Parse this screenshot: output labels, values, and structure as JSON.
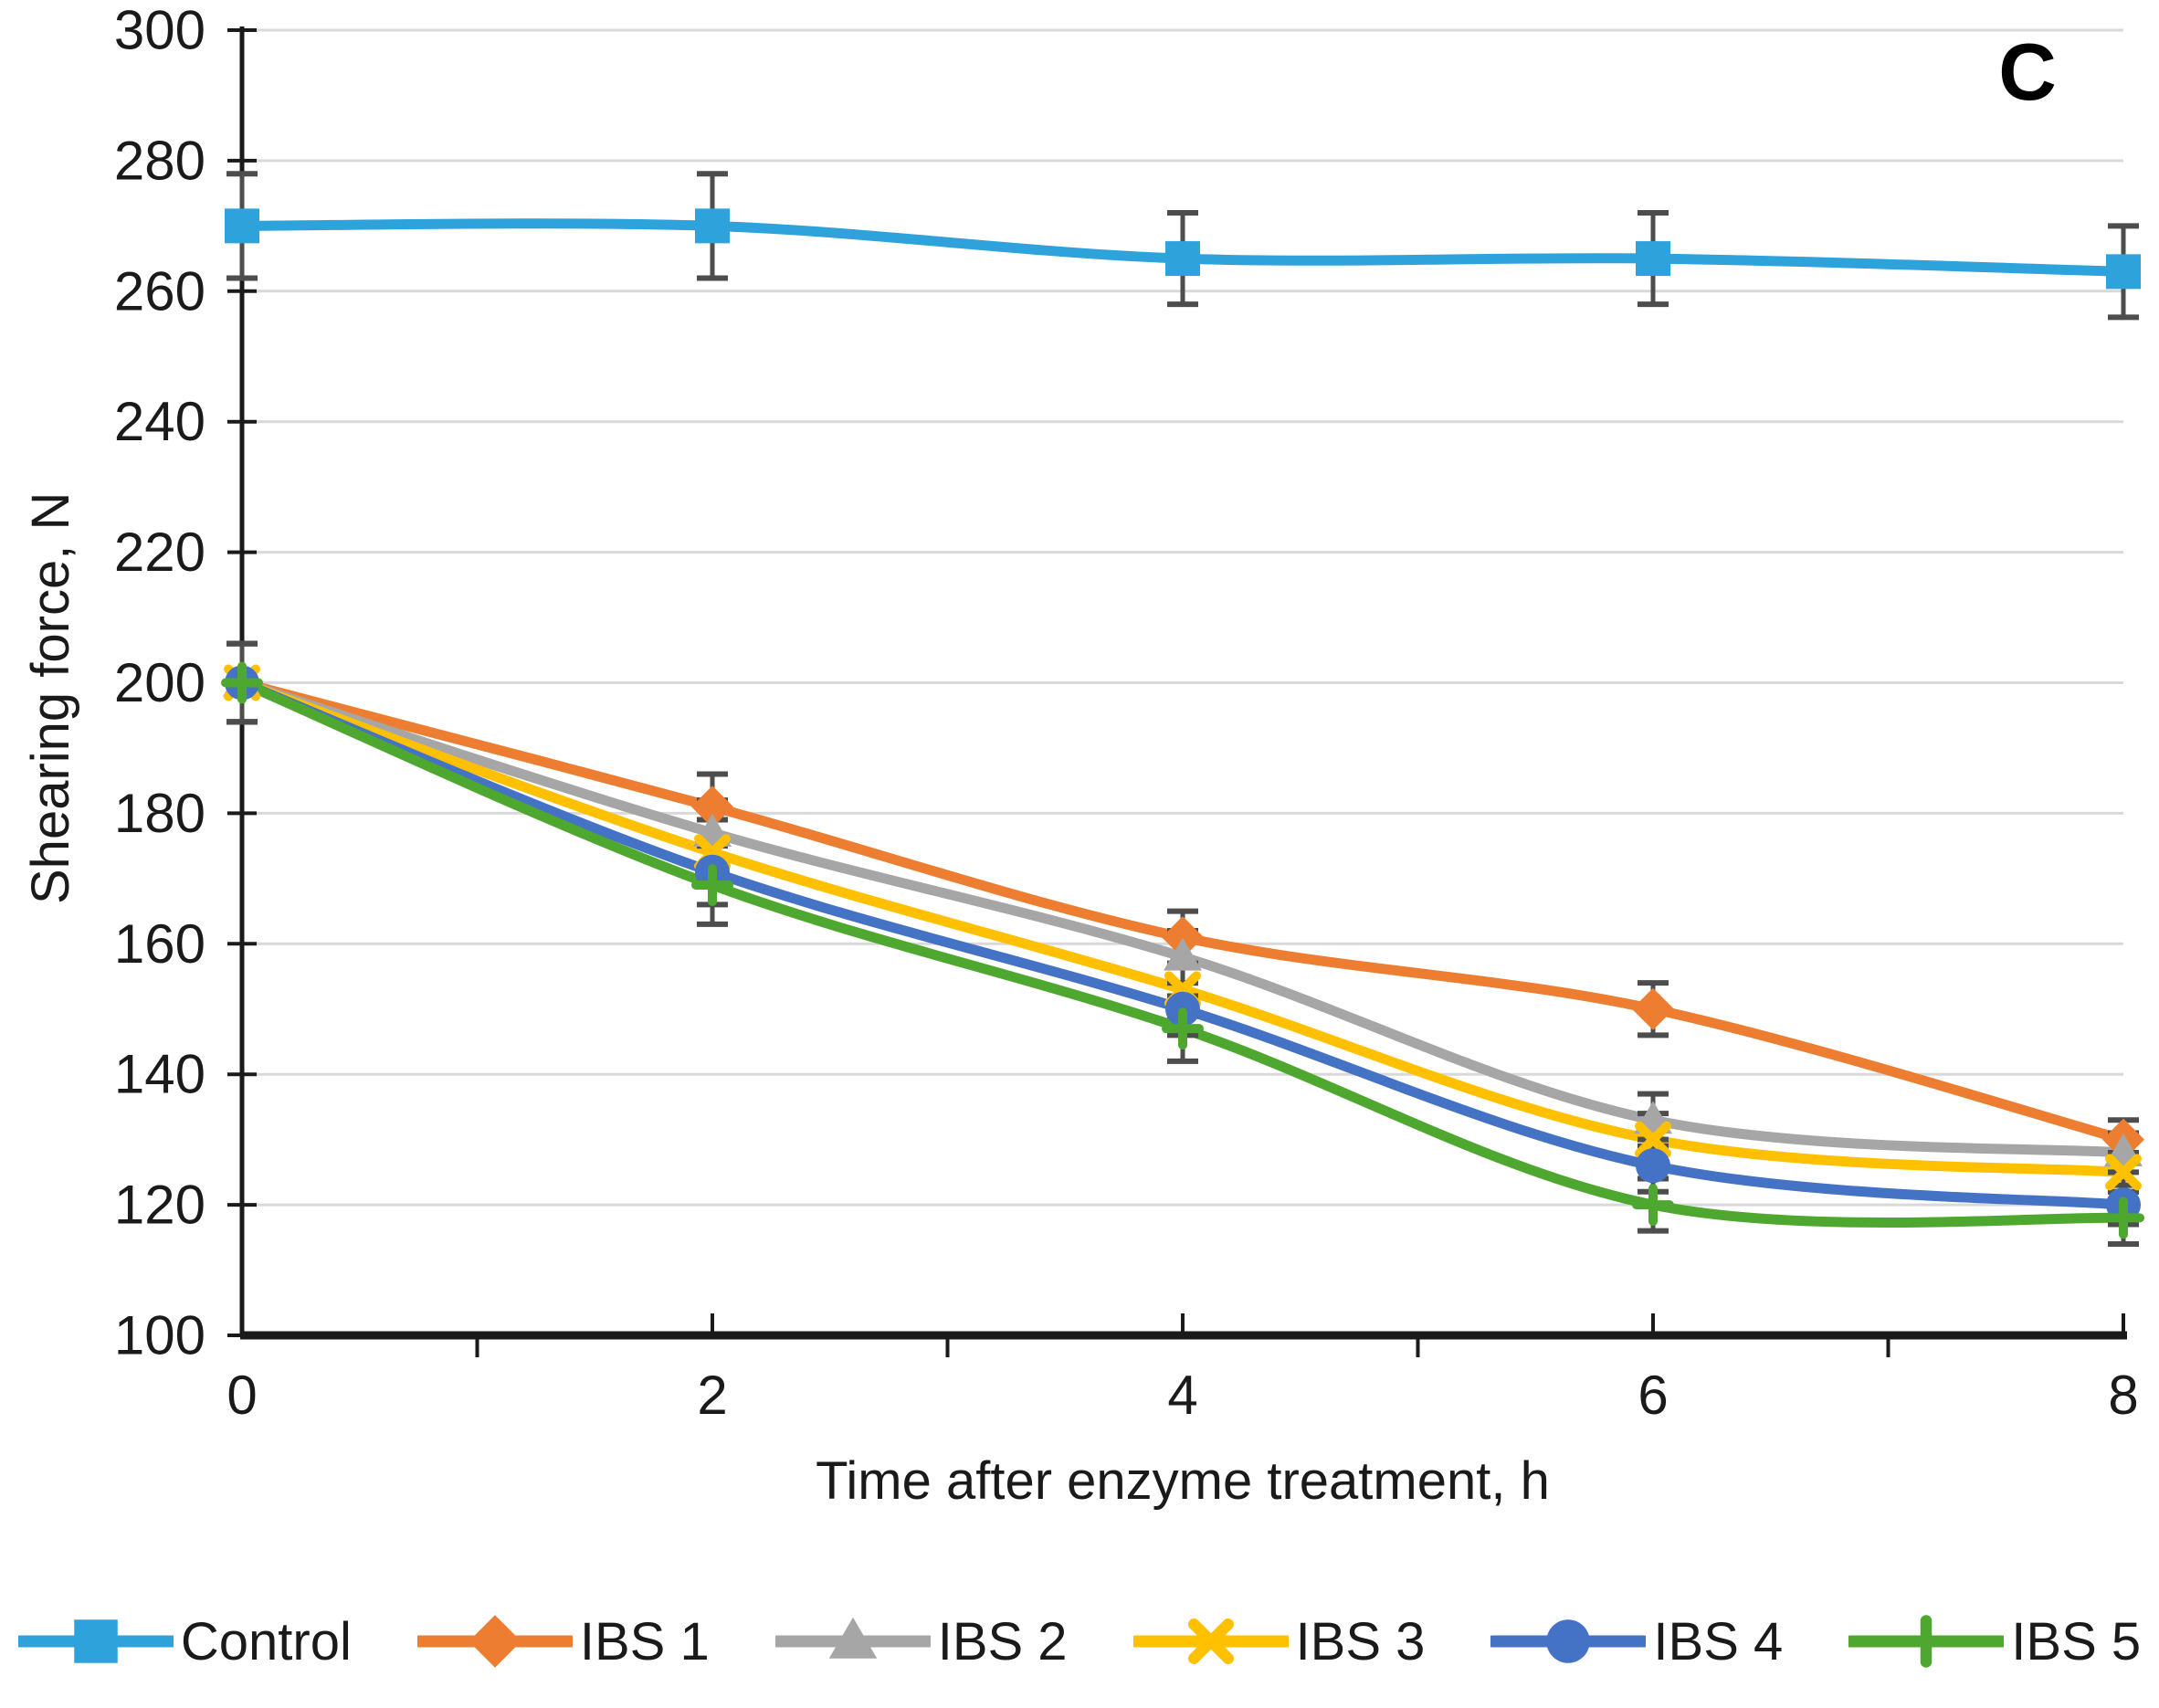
{
  "panel_label": "C",
  "chart_data": {
    "type": "line",
    "title": "",
    "xlabel": "Time after enzyme treatment, h",
    "ylabel": "Shearing force, N",
    "x": [
      0,
      2,
      4,
      6,
      8
    ],
    "xlim": [
      0,
      8
    ],
    "ylim": [
      100,
      300
    ],
    "yticks": [
      100,
      120,
      140,
      160,
      180,
      200,
      220,
      240,
      260,
      280,
      300
    ],
    "xticks_major": [
      0,
      2,
      4,
      6,
      8
    ],
    "xticks_minor": [
      1,
      3,
      5,
      7
    ],
    "grid": "horizontal",
    "gridline_color": "#d9d9d9",
    "axis_color": "#1a1a1a",
    "error_bar_color": "#4d4d4d",
    "smoothed_lines": true,
    "legend_position": "bottom",
    "series": [
      {
        "name": "Control",
        "color": "#2DA2DB",
        "marker": "square",
        "values": [
          270,
          270,
          265,
          265,
          263
        ],
        "errors": [
          8,
          8,
          7,
          7,
          7
        ]
      },
      {
        "name": "IBS 1",
        "color": "#ED7D31",
        "marker": "diamond",
        "values": [
          200,
          181,
          161,
          150,
          130
        ],
        "errors": [
          6,
          5,
          4,
          4,
          3
        ]
      },
      {
        "name": "IBS 2",
        "color": "#A6A6A6",
        "marker": "triangle",
        "values": [
          200,
          177,
          158,
          133,
          128
        ],
        "errors": [
          6,
          5,
          4,
          4,
          3
        ]
      },
      {
        "name": "IBS 3",
        "color": "#FFC000",
        "marker": "x",
        "values": [
          200,
          174,
          153,
          130,
          125
        ],
        "errors": [
          6,
          5,
          4,
          4,
          3
        ]
      },
      {
        "name": "IBS 4",
        "color": "#4472C4",
        "marker": "circle",
        "values": [
          200,
          171,
          150,
          126,
          120
        ],
        "errors": [
          6,
          5,
          4,
          4,
          3
        ]
      },
      {
        "name": "IBS 5",
        "color": "#4EA72E",
        "marker": "plus",
        "values": [
          200,
          169,
          147,
          120,
          118
        ],
        "errors": [
          6,
          6,
          5,
          4,
          4
        ]
      }
    ]
  }
}
